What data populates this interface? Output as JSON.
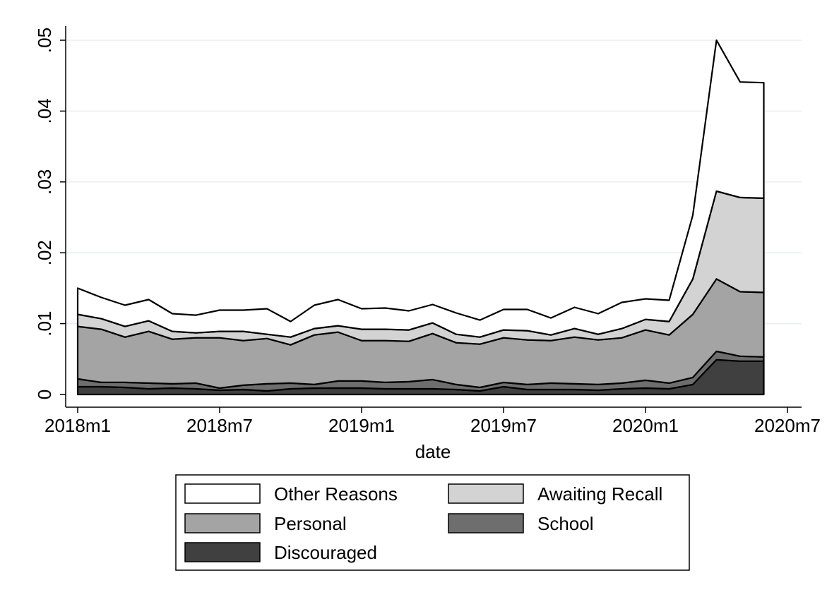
{
  "chart_data": {
    "type": "area",
    "stacked": true,
    "xlabel": "date",
    "ylabel": "",
    "ylim": [
      0,
      0.05
    ],
    "y_ticks": [
      0,
      0.01,
      0.02,
      0.03,
      0.04,
      0.05
    ],
    "y_tick_labels": [
      "0",
      ".01",
      ".02",
      ".03",
      ".04",
      ".05"
    ],
    "xlim": [
      "2018-01",
      "2020-07"
    ],
    "x_ticks": [
      "2018-01",
      "2018-07",
      "2019-01",
      "2019-07",
      "2020-01",
      "2020-07"
    ],
    "x_tick_labels": [
      "2018m1",
      "2018m7",
      "2019m1",
      "2019m7",
      "2020m1",
      "2020m7"
    ],
    "grid": true,
    "legend_position": "bottom",
    "x": [
      "2018-01",
      "2018-02",
      "2018-03",
      "2018-04",
      "2018-05",
      "2018-06",
      "2018-07",
      "2018-08",
      "2018-09",
      "2018-10",
      "2018-11",
      "2018-12",
      "2019-01",
      "2019-02",
      "2019-03",
      "2019-04",
      "2019-05",
      "2019-06",
      "2019-07",
      "2019-08",
      "2019-09",
      "2019-10",
      "2019-11",
      "2019-12",
      "2020-01",
      "2020-02",
      "2020-03",
      "2020-04",
      "2020-05",
      "2020-06"
    ],
    "series": [
      {
        "name": "Discouraged",
        "color": "#404040",
        "values": [
          0.0011,
          0.0011,
          0.001,
          0.0008,
          0.0009,
          0.0008,
          0.0006,
          0.0007,
          0.0005,
          0.0008,
          0.0009,
          0.0009,
          0.0009,
          0.0008,
          0.0008,
          0.0008,
          0.0007,
          0.0005,
          0.0011,
          0.0007,
          0.0007,
          0.0007,
          0.0006,
          0.0008,
          0.0009,
          0.0008,
          0.0014,
          0.0049,
          0.0047,
          0.0047
        ]
      },
      {
        "name": "School",
        "color": "#6e6e6e",
        "values": [
          0.0011,
          0.0006,
          0.0007,
          0.0008,
          0.0006,
          0.0008,
          0.0003,
          0.0006,
          0.001,
          0.0008,
          0.0005,
          0.001,
          0.001,
          0.0009,
          0.001,
          0.0013,
          0.0007,
          0.0005,
          0.0006,
          0.0007,
          0.0009,
          0.0008,
          0.0008,
          0.0008,
          0.0011,
          0.0008,
          0.001,
          0.0012,
          0.0007,
          0.0006
        ]
      },
      {
        "name": "Personal",
        "color": "#a4a4a4",
        "values": [
          0.0074,
          0.0075,
          0.0064,
          0.0073,
          0.0063,
          0.0064,
          0.0071,
          0.0063,
          0.0064,
          0.0054,
          0.007,
          0.0069,
          0.0057,
          0.0059,
          0.0057,
          0.0065,
          0.0059,
          0.0061,
          0.0063,
          0.0063,
          0.006,
          0.0066,
          0.0063,
          0.0064,
          0.0071,
          0.0068,
          0.0089,
          0.0102,
          0.0091,
          0.0091
        ]
      },
      {
        "name": "Awaiting Recall",
        "color": "#d3d3d3",
        "values": [
          0.0017,
          0.0015,
          0.0015,
          0.0015,
          0.0011,
          0.0007,
          0.0009,
          0.0013,
          0.0006,
          0.0011,
          0.0009,
          0.0009,
          0.0016,
          0.0016,
          0.0016,
          0.0015,
          0.0012,
          0.001,
          0.0011,
          0.0013,
          0.0008,
          0.0012,
          0.0008,
          0.0013,
          0.0015,
          0.0019,
          0.005,
          0.0124,
          0.0133,
          0.0133
        ]
      },
      {
        "name": "Other Reasons",
        "color": "#ffffff",
        "values": [
          0.0037,
          0.003,
          0.003,
          0.003,
          0.0025,
          0.0025,
          0.003,
          0.003,
          0.0036,
          0.0022,
          0.0033,
          0.0037,
          0.0029,
          0.003,
          0.0027,
          0.0026,
          0.003,
          0.0024,
          0.0029,
          0.003,
          0.0024,
          0.003,
          0.0029,
          0.0037,
          0.0029,
          0.003,
          0.009,
          0.0213,
          0.0163,
          0.0163
        ]
      }
    ]
  }
}
